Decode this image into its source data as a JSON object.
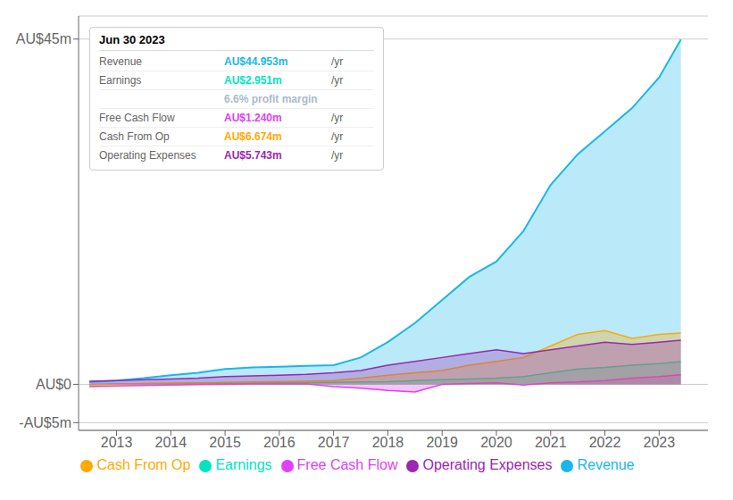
{
  "chart_data": {
    "type": "area",
    "x": [
      2012.5,
      2013,
      2013.5,
      2014,
      2014.5,
      2015,
      2015.5,
      2016,
      2016.5,
      2017,
      2017.5,
      2018,
      2018.5,
      2019,
      2019.5,
      2020,
      2020.5,
      2021,
      2021.5,
      2022,
      2022.5,
      2023,
      2023.4
    ],
    "series": [
      {
        "name": "Revenue",
        "color": "#1ab7ea",
        "values": [
          0.3,
          0.5,
          0.8,
          1.2,
          1.5,
          2.0,
          2.2,
          2.3,
          2.4,
          2.5,
          3.5,
          5.5,
          8.0,
          11.0,
          14.0,
          16.0,
          20.0,
          26.0,
          30.0,
          33.0,
          36.0,
          40.0,
          44.953
        ]
      },
      {
        "name": "Earnings",
        "color": "#00e5c0",
        "values": [
          0.0,
          0.05,
          0.08,
          0.1,
          0.12,
          0.15,
          0.18,
          0.2,
          0.22,
          0.25,
          0.3,
          0.35,
          0.5,
          0.6,
          0.7,
          0.8,
          1.0,
          1.5,
          2.0,
          2.2,
          2.5,
          2.7,
          2.951
        ]
      },
      {
        "name": "Free Cash Flow",
        "color": "#e040fb",
        "values": [
          -0.3,
          -0.2,
          -0.15,
          -0.1,
          -0.05,
          0.0,
          0.05,
          0.05,
          0.05,
          -0.3,
          -0.5,
          -0.8,
          -1.0,
          0.0,
          0.1,
          0.2,
          -0.1,
          0.2,
          0.3,
          0.5,
          0.8,
          1.0,
          1.24
        ]
      },
      {
        "name": "Cash From Op",
        "color": "#ffaa00",
        "values": [
          -0.1,
          0.0,
          0.1,
          0.15,
          0.2,
          0.25,
          0.3,
          0.35,
          0.4,
          0.5,
          0.8,
          1.2,
          1.5,
          1.8,
          2.5,
          3.0,
          3.5,
          5.0,
          6.5,
          7.0,
          6.0,
          6.5,
          6.674
        ]
      },
      {
        "name": "Operating Expenses",
        "color": "#9c27b0",
        "values": [
          0.4,
          0.5,
          0.6,
          0.7,
          0.8,
          1.0,
          1.1,
          1.2,
          1.3,
          1.5,
          1.8,
          2.5,
          3.0,
          3.5,
          4.0,
          4.5,
          4.0,
          4.5,
          5.0,
          5.5,
          5.2,
          5.5,
          5.743
        ]
      }
    ],
    "xlim": [
      2012.3,
      2023.9
    ],
    "xticks": [
      2013,
      2014,
      2015,
      2016,
      2017,
      2018,
      2019,
      2020,
      2021,
      2022,
      2023
    ],
    "ylim": [
      -6,
      48
    ],
    "yticks": [
      {
        "value": -5,
        "label": "-AU$5m"
      },
      {
        "value": 0,
        "label": "AU$0"
      },
      {
        "value": 45,
        "label": "AU$45m"
      }
    ],
    "grid": true,
    "legend": "bottom",
    "annotations": [
      {
        "text": "Jun 30 2023"
      },
      {
        "label": "Revenue",
        "text": "AU$44.953m",
        "suffix": "/yr",
        "color": "#1ab7ea"
      },
      {
        "label": "Earnings",
        "text": "AU$2.951m",
        "suffix": "/yr",
        "color": "#00e5c0"
      },
      {
        "text": "6.6% profit margin",
        "color": "#aabbcc"
      },
      {
        "label": "Free Cash Flow",
        "text": "AU$1.240m",
        "suffix": "/yr",
        "color": "#e040fb"
      },
      {
        "label": "Cash From Op",
        "text": "AU$6.674m",
        "suffix": "/yr",
        "color": "#ffaa00"
      },
      {
        "label": "Operating Expenses",
        "text": "AU$5.743m",
        "suffix": "/yr",
        "color": "#9c27b0"
      }
    ]
  }
}
